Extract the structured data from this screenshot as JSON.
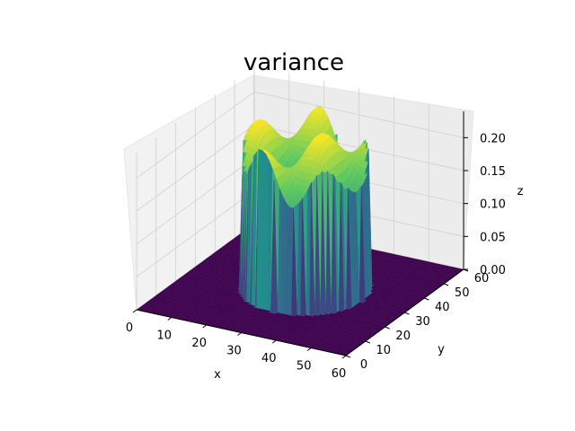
{
  "chart_data": {
    "type": "surface3d",
    "title": "variance",
    "xlabel": "x",
    "ylabel": "y",
    "zlabel": "z",
    "xlim": [
      0,
      60
    ],
    "ylim": [
      0,
      60
    ],
    "zlim": [
      0,
      0.24
    ],
    "x_ticks": [
      "0",
      "10",
      "20",
      "30",
      "40",
      "50",
      "60"
    ],
    "y_ticks": [
      "0",
      "10",
      "20",
      "30",
      "40",
      "50",
      "60"
    ],
    "z_ticks": [
      "0.00",
      "0.05",
      "0.10",
      "0.15",
      "0.20"
    ],
    "grid": true,
    "colormap": [
      "#440154",
      "#3b528b",
      "#21918c",
      "#5ec962",
      "#fde725"
    ],
    "pane_color": "#f2f2f2",
    "grid_color": "#d0d0d0",
    "surface": {
      "center": [
        31,
        31
      ],
      "radius": 16,
      "inside_value_range": [
        0.16,
        0.24
      ],
      "outside_value": 0.0
    }
  }
}
